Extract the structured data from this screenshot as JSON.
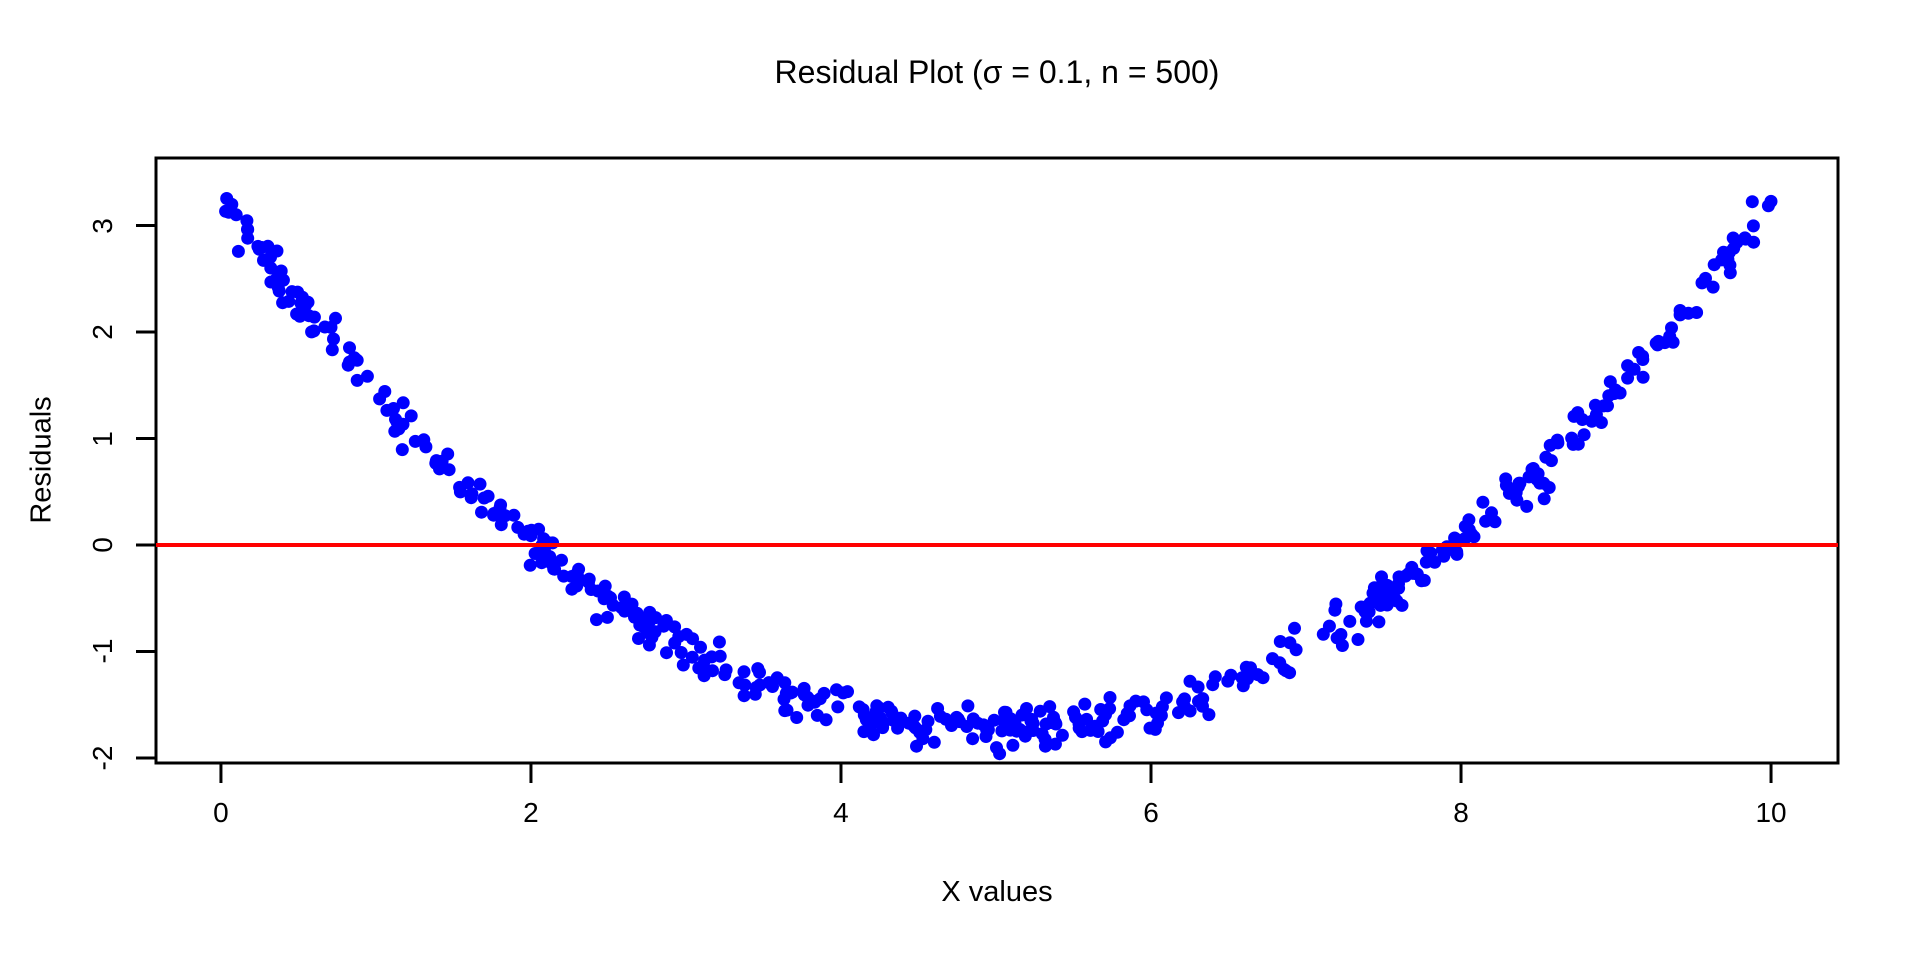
{
  "chart_data": {
    "type": "scatter",
    "title": "Residual Plot (σ = 0.1, n = 500)",
    "xlabel": "X values",
    "ylabel": "Residuals",
    "n": 500,
    "x_data_range": [
      0,
      10
    ],
    "xlim": [
      -0.419,
      10.432
    ],
    "ylim": [
      -2.047,
      3.634
    ],
    "x_ticks": [
      0,
      2,
      4,
      6,
      8,
      10
    ],
    "y_ticks": [
      -2,
      -1,
      0,
      1,
      2,
      3
    ],
    "grid": false,
    "legend": false,
    "point_color": "#0000FF",
    "point_radius": 6.5,
    "zero_line_color": "#FF0000",
    "zero_line_y": 0,
    "axis_color": "#000000",
    "model": {
      "type": "quadratic_residual_pattern",
      "equation": "residual = 0.2*(x-5)^2 - 1.75 + noise",
      "a": 0.2,
      "vertex_x": 5,
      "vertex_y": -1.75,
      "noise_sd": 0.1,
      "x_distribution": "uniform",
      "seed": 20
    }
  }
}
